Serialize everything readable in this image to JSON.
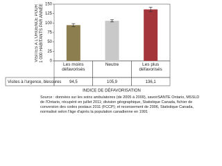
{
  "chart_data": {
    "type": "bar",
    "ylabel": "VISITES À L'URGENCE POUR 1 000 HABITANTS PAR ANNÉE",
    "xlabel": "INDICE DE DÉFAVORISATION",
    "categories": [
      "Les moins défavorisés",
      "Neutre",
      "Les plus défavorisés"
    ],
    "values": [
      94.5,
      105.9,
      136.1
    ],
    "errors": [
      4,
      3,
      6
    ],
    "colors": [
      "#8c7e4f",
      "#c9c9c9",
      "#a3353b"
    ],
    "table_row_label": "Visites à l'urgence, blessures",
    "value_labels": [
      "94,5",
      "105,9",
      "136,1"
    ],
    "ylim": [
      0,
      150
    ],
    "yticks": [
      0,
      25,
      50,
      75,
      100,
      125,
      150
    ],
    "grid": false,
    "source": "Source : données sur les soins ambulatoires (de 2005 à 2009), savoirSANTE Ontario, MSSLD de l'Ontario, récupéré en juillet 2011; division géographique, Statistique Canada, fichier de conversion des codes postaux 2011 (FCCP); et recensement de 2006, Statistique Canada, normalisé selon l'âge d'après la population canadienne en 1991"
  }
}
